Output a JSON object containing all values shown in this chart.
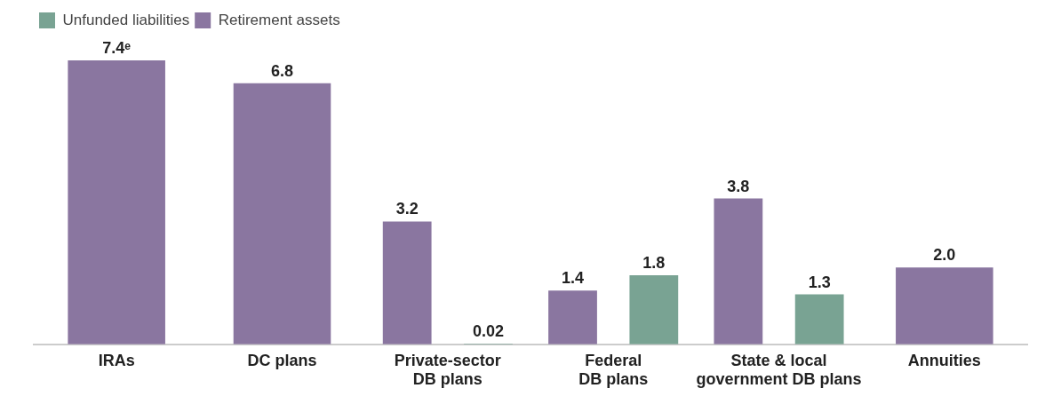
{
  "chart_data": {
    "type": "bar",
    "categories": [
      "IRAs",
      "DC plans",
      "Private-sector\nDB plans",
      "Federal\nDB plans",
      "State & local\ngovernment DB plans",
      "Annuities"
    ],
    "series": [
      {
        "name": "Retirement assets",
        "color": "#8a76a0",
        "values": [
          7.4,
          6.8,
          3.2,
          1.4,
          3.8,
          2.0
        ],
        "value_labels": [
          "7.4ᵉ",
          "6.8",
          "3.2",
          "1.4",
          "3.8",
          "2.0"
        ]
      },
      {
        "name": "Unfunded liabilities",
        "color": "#79a393",
        "values": [
          null,
          null,
          0.02,
          1.8,
          1.3,
          null
        ],
        "value_labels": [
          null,
          null,
          "0.02",
          "1.8",
          "1.3",
          null
        ]
      }
    ],
    "legend": "top left",
    "grid": false
  }
}
